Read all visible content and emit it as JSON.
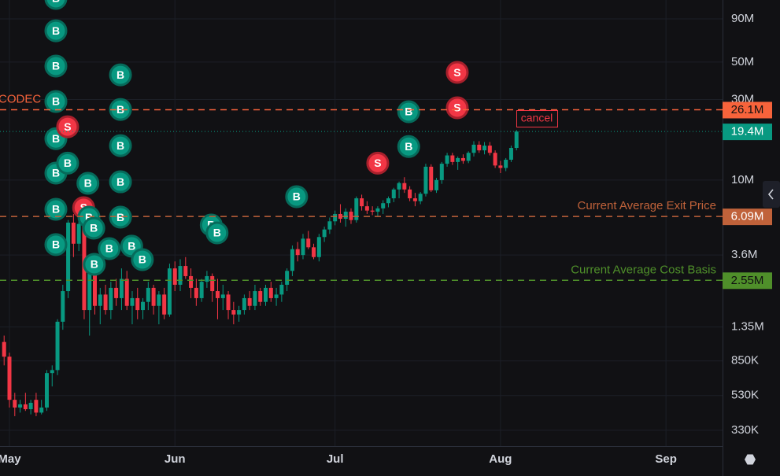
{
  "chart_data": {
    "type": "candlestick",
    "log_y": true,
    "grid": true,
    "up_color": "#089981",
    "down_color": "#f23645",
    "xlim": [
      -1.77,
      133.6
    ],
    "xticks": [
      {
        "value": 0,
        "label": "May"
      },
      {
        "value": 31,
        "label": "Jun"
      },
      {
        "value": 61,
        "label": "Jul"
      },
      {
        "value": 92,
        "label": "Aug"
      },
      {
        "value": 123,
        "label": "Sep"
      }
    ],
    "ylim": [
      0.266,
      116.5
    ],
    "yticks": [
      {
        "value": 90,
        "label": "90M"
      },
      {
        "value": 50,
        "label": "50M"
      },
      {
        "value": 30,
        "label": "30M"
      },
      {
        "value": 10,
        "label": "10M"
      },
      {
        "value": 3.6,
        "label": "3.6M"
      },
      {
        "value": 1.35,
        "label": "1.35M"
      },
      {
        "value": 0.85,
        "label": "850K"
      },
      {
        "value": 0.53,
        "label": "530K"
      },
      {
        "value": 0.33,
        "label": "330K"
      }
    ],
    "x": [
      -1,
      0,
      1,
      2,
      3,
      4,
      5,
      6,
      7,
      8,
      9,
      10,
      11,
      12,
      13,
      14,
      15,
      16,
      17,
      18,
      19,
      20,
      21,
      22,
      23,
      24,
      25,
      26,
      27,
      28,
      29,
      30,
      31,
      32,
      33,
      34,
      35,
      36,
      37,
      38,
      39,
      40,
      41,
      42,
      43,
      44,
      45,
      46,
      47,
      48,
      49,
      50,
      51,
      52,
      53,
      54,
      55,
      56,
      57,
      58,
      59,
      60,
      61,
      62,
      63,
      64,
      65,
      66,
      67,
      68,
      69,
      70,
      71,
      72,
      73,
      74,
      75,
      76,
      77,
      78,
      79,
      80,
      81,
      82,
      83,
      84,
      85,
      86,
      87,
      88,
      89,
      90,
      91,
      92,
      93,
      94,
      95
    ],
    "open": [
      1.1,
      0.9,
      0.5,
      0.45,
      0.47,
      0.44,
      0.5,
      0.42,
      0.45,
      0.72,
      0.75,
      1.45,
      2.2,
      5.6,
      4.2,
      5.5,
      1.7,
      3.0,
      1.8,
      2.1,
      1.7,
      2.3,
      2.0,
      2.6,
      1.8,
      2.0,
      1.7,
      1.9,
      2.3,
      1.8,
      2.1,
      1.6,
      3.0,
      2.4,
      3.1,
      2.7,
      2.3,
      2.0,
      2.5,
      2.7,
      2.2,
      2.0,
      2.1,
      1.7,
      1.6,
      1.7,
      2.0,
      1.8,
      2.2,
      1.9,
      2.3,
      2.0,
      2.1,
      2.4,
      2.9,
      3.9,
      3.6,
      4.5,
      4.0,
      3.5,
      4.6,
      5.1,
      5.7,
      6.3,
      5.9,
      6.5,
      5.8,
      7.8,
      7.0,
      6.6,
      6.5,
      6.8,
      7.3,
      7.8,
      8.8,
      9.6,
      8.8,
      7.8,
      7.5,
      8.3,
      12.0,
      8.7,
      10.0,
      12.5,
      14.0,
      12.8,
      13.5,
      13.0,
      14.5,
      16.2,
      15.0,
      16.0,
      14.5,
      12.2,
      11.8,
      13.2,
      15.5
    ],
    "high": [
      1.2,
      0.95,
      0.55,
      0.5,
      0.55,
      0.5,
      0.55,
      0.5,
      0.75,
      0.8,
      1.5,
      2.4,
      5.8,
      6.3,
      6.0,
      5.8,
      3.2,
      3.3,
      2.3,
      2.4,
      2.5,
      2.6,
      3.0,
      2.9,
      2.2,
      2.3,
      2.0,
      2.5,
      2.4,
      2.2,
      2.3,
      3.2,
      3.3,
      3.4,
      3.5,
      3.0,
      2.6,
      2.6,
      2.9,
      2.8,
      2.6,
      2.4,
      2.2,
      1.9,
      1.8,
      2.1,
      2.2,
      2.4,
      2.3,
      2.4,
      2.5,
      2.3,
      2.5,
      3.0,
      4.1,
      4.3,
      4.8,
      5.0,
      4.2,
      4.8,
      5.3,
      6.0,
      6.6,
      7.2,
      6.8,
      6.8,
      8.0,
      8.2,
      7.5,
      7.0,
      7.0,
      7.6,
      8.0,
      9.0,
      9.8,
      10.4,
      9.2,
      8.4,
      8.5,
      12.5,
      12.4,
      10.3,
      12.8,
      14.5,
      14.5,
      13.8,
      14.2,
      14.8,
      17.0,
      17.0,
      16.8,
      16.8,
      15.0,
      13.0,
      13.5,
      16.0,
      19.8
    ],
    "low": [
      0.8,
      0.45,
      0.4,
      0.42,
      0.43,
      0.41,
      0.4,
      0.41,
      0.43,
      0.6,
      0.7,
      1.3,
      2.0,
      3.5,
      3.8,
      1.5,
      1.2,
      1.6,
      1.4,
      1.6,
      1.5,
      1.8,
      1.7,
      1.7,
      1.4,
      1.5,
      1.5,
      1.7,
      1.6,
      1.4,
      1.5,
      1.55,
      2.2,
      2.2,
      2.6,
      2.0,
      1.8,
      1.9,
      2.3,
      1.9,
      1.5,
      1.7,
      1.5,
      1.4,
      1.45,
      1.6,
      1.7,
      1.7,
      1.8,
      1.8,
      1.9,
      1.8,
      1.9,
      2.2,
      2.7,
      3.3,
      3.4,
      3.9,
      3.4,
      3.3,
      4.3,
      4.8,
      5.4,
      5.6,
      5.3,
      5.5,
      5.6,
      6.6,
      6.3,
      6.2,
      6.1,
      6.3,
      6.9,
      7.4,
      7.8,
      8.4,
      7.5,
      7.0,
      7.2,
      8.0,
      8.5,
      8.4,
      9.5,
      12.0,
      12.3,
      11.5,
      12.5,
      12.6,
      13.8,
      14.5,
      14.2,
      14.0,
      11.8,
      11.0,
      11.3,
      12.8,
      15.0
    ],
    "close": [
      0.9,
      0.5,
      0.45,
      0.47,
      0.44,
      0.48,
      0.42,
      0.45,
      0.72,
      0.75,
      1.45,
      2.2,
      5.6,
      4.2,
      5.5,
      1.7,
      3.0,
      1.8,
      2.1,
      1.7,
      2.3,
      2.0,
      2.6,
      1.8,
      2.0,
      1.7,
      1.9,
      2.3,
      1.8,
      2.1,
      1.6,
      3.0,
      2.4,
      3.1,
      2.7,
      2.3,
      2.0,
      2.5,
      2.7,
      2.2,
      2.0,
      2.1,
      1.7,
      1.6,
      1.7,
      2.0,
      1.8,
      2.2,
      1.9,
      2.3,
      2.0,
      2.1,
      2.4,
      2.9,
      3.9,
      3.6,
      4.5,
      4.0,
      3.5,
      4.6,
      5.1,
      5.7,
      6.3,
      5.9,
      6.5,
      5.8,
      7.8,
      7.0,
      6.6,
      6.5,
      6.8,
      7.3,
      7.8,
      8.8,
      9.6,
      8.8,
      7.8,
      7.5,
      8.3,
      12.0,
      8.7,
      10.0,
      12.5,
      14.0,
      12.8,
      13.5,
      13.0,
      14.5,
      16.2,
      15.0,
      16.0,
      14.5,
      12.2,
      11.8,
      13.2,
      15.5,
      19.4
    ],
    "hlines": [
      {
        "label": "CODEC",
        "value": 26.1,
        "value_label": "26.1M",
        "color": "#f7633b",
        "text_color": "#111111",
        "style": "dashed"
      },
      {
        "value": 19.4,
        "value_label": "19.4M",
        "color": "#089981",
        "text_color": "#ffffff",
        "style": "dotted"
      },
      {
        "label": "Current Average Exit Price",
        "value": 6.09,
        "value_label": "6.09M",
        "color": "#c0623a",
        "text_color": "#ffffff",
        "style": "dashed"
      },
      {
        "label": "Current Average Cost Basis",
        "value": 2.55,
        "value_label": "2.55M",
        "color": "#4f8f2a",
        "text_color": "#111111",
        "style": "dashed"
      }
    ],
    "markers": [
      {
        "side": "B",
        "x": 8.7,
        "value": 119
      },
      {
        "side": "B",
        "x": 8.7,
        "value": 76.6
      },
      {
        "side": "B",
        "x": 8.7,
        "value": 47.3
      },
      {
        "side": "B",
        "x": 8.7,
        "value": 29.2
      },
      {
        "side": "B",
        "x": 8.7,
        "value": 17.6
      },
      {
        "side": "B",
        "x": 8.7,
        "value": 11.0
      },
      {
        "side": "B",
        "x": 8.7,
        "value": 6.72
      },
      {
        "side": "B",
        "x": 8.7,
        "value": 4.15
      },
      {
        "side": "S",
        "x": 10.9,
        "value": 20.7
      },
      {
        "side": "B",
        "x": 10.9,
        "value": 12.6
      },
      {
        "side": "B",
        "x": 14.7,
        "value": 9.57
      },
      {
        "side": "S",
        "x": 13.9,
        "value": 6.86
      },
      {
        "side": "B",
        "x": 14.9,
        "value": 6.03
      },
      {
        "side": "B",
        "x": 15.8,
        "value": 5.19
      },
      {
        "side": "B",
        "x": 15.9,
        "value": 3.17
      },
      {
        "side": "B",
        "x": 18.7,
        "value": 3.93
      },
      {
        "side": "B",
        "x": 20.8,
        "value": 42.0
      },
      {
        "side": "B",
        "x": 20.8,
        "value": 26.2
      },
      {
        "side": "B",
        "x": 20.8,
        "value": 16.0
      },
      {
        "side": "B",
        "x": 20.8,
        "value": 9.77
      },
      {
        "side": "B",
        "x": 20.8,
        "value": 6.03
      },
      {
        "side": "B",
        "x": 22.9,
        "value": 4.06
      },
      {
        "side": "B",
        "x": 24.9,
        "value": 3.38
      },
      {
        "side": "B",
        "x": 37.8,
        "value": 5.42
      },
      {
        "side": "B",
        "x": 38.9,
        "value": 4.87
      },
      {
        "side": "B",
        "x": 53.8,
        "value": 7.97
      },
      {
        "side": "S",
        "x": 69.0,
        "value": 12.6
      },
      {
        "side": "B",
        "x": 74.8,
        "value": 25.4
      },
      {
        "side": "B",
        "x": 74.8,
        "value": 15.8
      },
      {
        "side": "S",
        "x": 83.9,
        "value": 43.4
      },
      {
        "side": "S",
        "x": 83.9,
        "value": 26.8
      }
    ],
    "order_button": "cancel"
  }
}
